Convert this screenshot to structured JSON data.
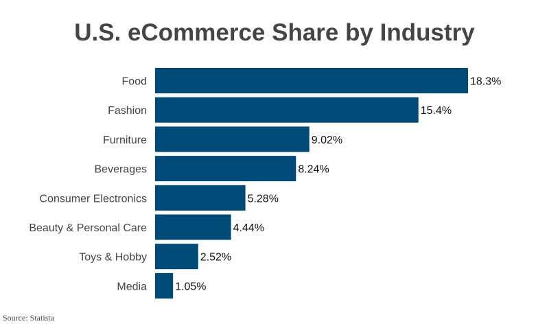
{
  "chart_data": {
    "type": "bar",
    "orientation": "horizontal",
    "title": "U.S. eCommerce Share by Industry",
    "categories": [
      "Food",
      "Fashion",
      "Furniture",
      "Beverages",
      "Consumer Electronics",
      "Beauty & Personal Care",
      "Toys & Hobby",
      "Media"
    ],
    "values": [
      18.3,
      15.4,
      9.02,
      8.24,
      5.28,
      4.44,
      2.52,
      1.05
    ],
    "data_labels": [
      "18.3%",
      "15.4%",
      "9.02%",
      "8.24%",
      "5.28%",
      "4.44%",
      "2.52%",
      "1.05%"
    ],
    "xlim": [
      0,
      18.3
    ],
    "grid": false,
    "bar_color": "#004a78",
    "source": "Source: Statista"
  }
}
